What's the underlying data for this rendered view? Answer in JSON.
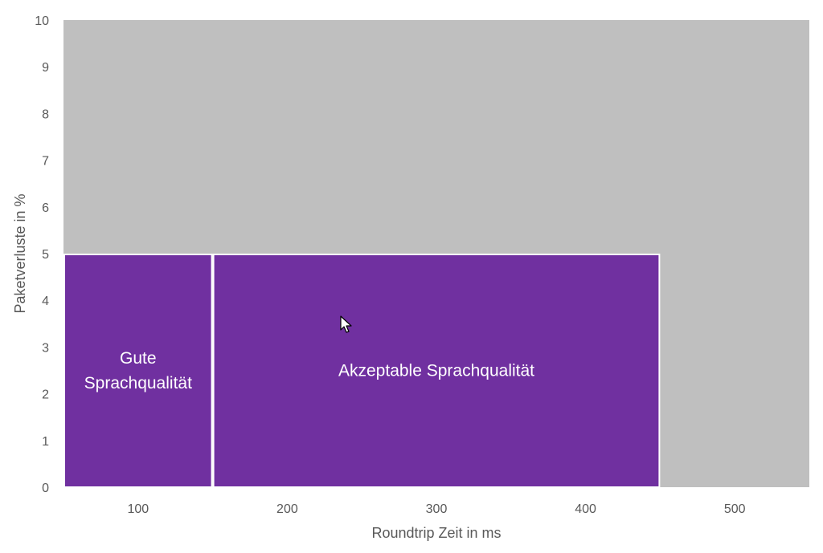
{
  "chart_data": {
    "type": "area",
    "title": "",
    "xlabel": "Roundtrip Zeit in ms",
    "ylabel": "Paketverluste in %",
    "xlim": [
      50,
      550
    ],
    "ylim": [
      0,
      10
    ],
    "x_ticks": [
      100,
      200,
      300,
      400,
      500
    ],
    "y_ticks": [
      0,
      1,
      2,
      3,
      4,
      5,
      6,
      7,
      8,
      9,
      10
    ],
    "grid": false,
    "legend": "none",
    "regions": [
      {
        "id": "background",
        "x_range": [
          50,
          550
        ],
        "y_range": [
          0,
          10
        ],
        "color": "#bfbfbf",
        "label_lines": []
      },
      {
        "id": "gute",
        "x_range": [
          50,
          150
        ],
        "y_range": [
          0,
          5
        ],
        "color": "#7030a0",
        "label_lines": [
          "Gute",
          "Sprachqualität"
        ]
      },
      {
        "id": "akzeptabel",
        "x_range": [
          150,
          450
        ],
        "y_range": [
          0,
          5
        ],
        "color": "#7030a0",
        "label_lines": [
          "Akzeptable Sprachqualität"
        ]
      }
    ]
  }
}
